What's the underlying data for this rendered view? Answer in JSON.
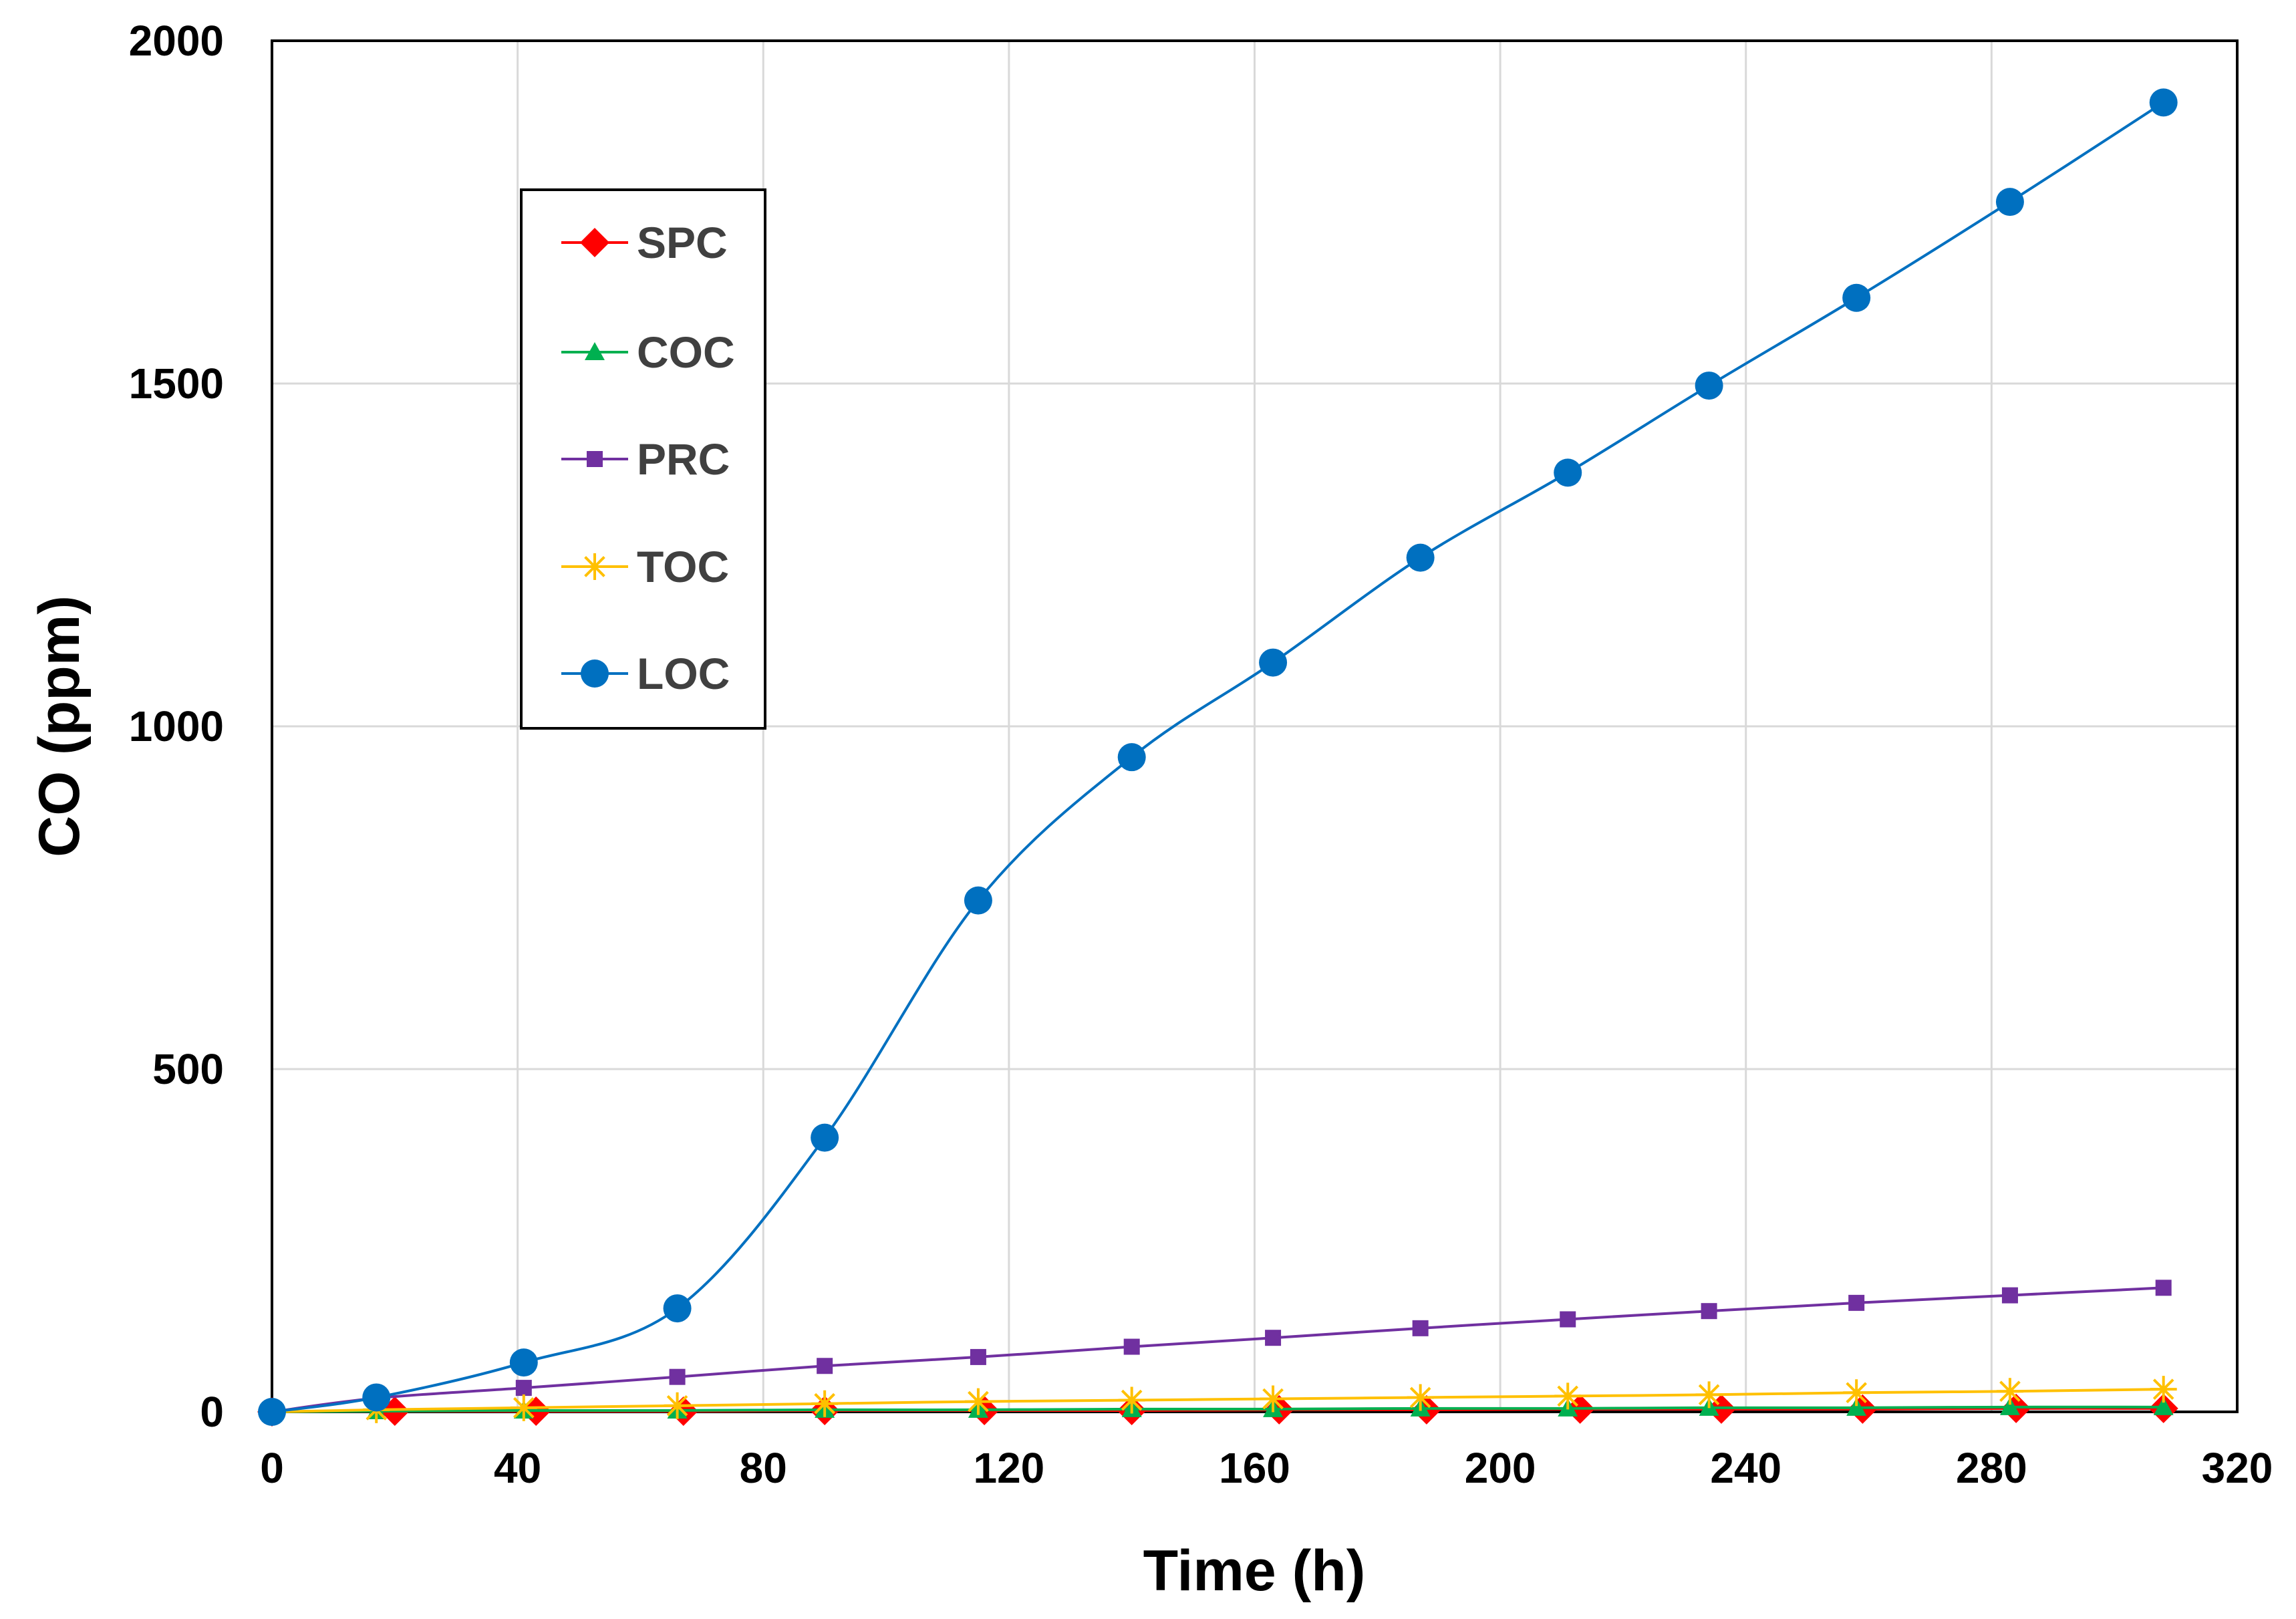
{
  "chart_data": {
    "type": "line",
    "title": "",
    "xlabel": "Time (h)",
    "ylabel": "CO (ppm)",
    "xlim": [
      0,
      320
    ],
    "ylim": [
      0,
      2000
    ],
    "xticks": [
      0,
      40,
      80,
      120,
      160,
      200,
      240,
      280,
      320
    ],
    "yticks": [
      0,
      500,
      1000,
      1500,
      2000
    ],
    "grid": true,
    "legend_position": "upper-left",
    "series": [
      {
        "name": "SPC",
        "color": "#ff0000",
        "marker": "diamond",
        "x": [
          0,
          20,
          43,
          67,
          90,
          116,
          140,
          164,
          188,
          213,
          236,
          259,
          284,
          308
        ],
        "y": [
          0,
          1,
          1,
          1,
          2,
          2,
          2,
          3,
          3,
          4,
          4,
          4,
          5,
          5
        ]
      },
      {
        "name": "COC",
        "color": "#00b050",
        "marker": "triangle",
        "x": [
          0,
          17,
          41,
          66,
          90,
          115,
          140,
          163,
          187,
          211,
          234,
          258,
          283,
          308
        ],
        "y": [
          0,
          1,
          2,
          2,
          3,
          3,
          4,
          4,
          5,
          5,
          6,
          6,
          7,
          7
        ]
      },
      {
        "name": "PRC",
        "color": "#7030a0",
        "marker": "square",
        "x": [
          0,
          17,
          41,
          66,
          90,
          115,
          140,
          163,
          187,
          211,
          234,
          258,
          283,
          308
        ],
        "y": [
          0,
          20,
          35,
          51,
          67,
          80,
          95,
          108,
          122,
          135,
          147,
          159,
          170,
          181
        ]
      },
      {
        "name": "TOC",
        "color": "#ffc000",
        "marker": "star",
        "x": [
          0,
          17,
          41,
          66,
          90,
          115,
          140,
          163,
          187,
          211,
          234,
          258,
          283,
          308
        ],
        "y": [
          0,
          3,
          6,
          9,
          12,
          15,
          17,
          19,
          21,
          23,
          25,
          28,
          30,
          33
        ]
      },
      {
        "name": "LOC",
        "color": "#0070c0",
        "marker": "circle",
        "x": [
          0,
          17,
          41,
          66,
          90,
          115,
          140,
          163,
          187,
          211,
          234,
          258,
          283,
          308
        ],
        "y": [
          0,
          21,
          72,
          151,
          400,
          746,
          955,
          1093,
          1246,
          1370,
          1497,
          1625,
          1765,
          1910
        ]
      }
    ]
  }
}
